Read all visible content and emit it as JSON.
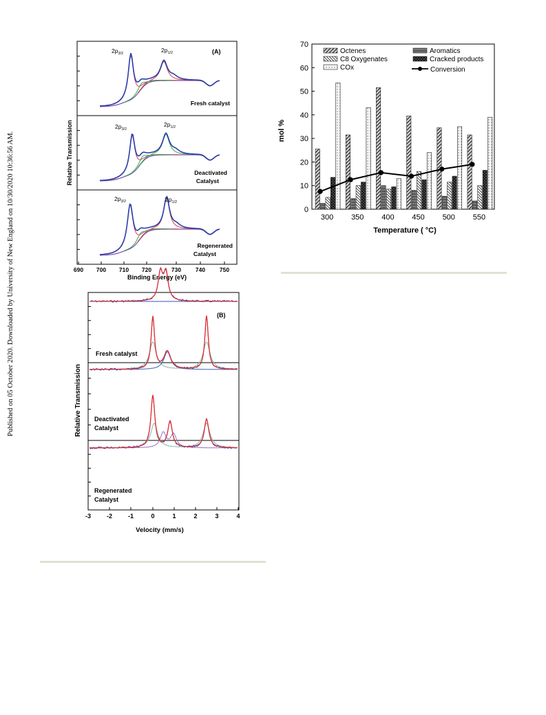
{
  "side_note": "Published on 05 October 2020. Downloaded by University of New England on 10/30/2020 10:36:56 AM.",
  "panel_a": {
    "label": "(A)",
    "ylabel": "Relative Transmission",
    "xlabel": "Binding Energy (eV)",
    "xticks": [
      "690",
      "700",
      "710",
      "720",
      "730",
      "740",
      "750"
    ],
    "subpanels": [
      {
        "text1": "Fresh catalyst",
        "text2": ""
      },
      {
        "text1": "Deactivated",
        "text2": "Catalyst"
      },
      {
        "text1": "Regenerated",
        "text2": "Catalyst"
      }
    ],
    "peak_main": "2p",
    "peak_sub1": "3/2",
    "peak_sub2": "1/2"
  },
  "panel_b": {
    "label": "(B)",
    "ylabel": "Relative Transmission",
    "xlabel": "Velocity (mm/s)",
    "xticks": [
      "-3",
      "-2",
      "-1",
      "0",
      "1",
      "2",
      "3",
      "4"
    ],
    "subpanels": [
      {
        "text1": "Fresh catalyst",
        "text2": ""
      },
      {
        "text1": "Deactivated",
        "text2": "Catalyst"
      },
      {
        "text1": "Regenerated",
        "text2": "Catalyst"
      }
    ]
  },
  "colors": {
    "octenes": "#bdbdbd",
    "aromatics": "#7a7a7a",
    "c8": "#e6e6e6",
    "cracked": "#3d3d3d",
    "cox": "#f2f2f2",
    "conversion": "#000000",
    "separator": "#e2e0d2"
  },
  "chart_data": {
    "type": "bar",
    "title": "",
    "xlabel": "Temperature ( °C)",
    "ylabel": "mol %",
    "ylim": [
      0,
      70
    ],
    "yticks": [
      "0",
      "10",
      "20",
      "30",
      "40",
      "50",
      "60",
      "70"
    ],
    "categories": [
      "300",
      "350",
      "400",
      "450",
      "500",
      "550"
    ],
    "legend_position": "top",
    "series": [
      {
        "name": "Octenes",
        "values": [
          25.5,
          31.5,
          51.5,
          39.5,
          34.5,
          31.5
        ]
      },
      {
        "name": "Aromatics",
        "values": [
          2.5,
          4.5,
          10,
          8,
          5.5,
          3.5
        ]
      },
      {
        "name": "C8 Oxygenates",
        "values": [
          5,
          10,
          8.5,
          16,
          11.5,
          10
        ]
      },
      {
        "name": "Cracked products",
        "values": [
          13.5,
          11.5,
          9.5,
          12.5,
          14,
          16.5
        ]
      },
      {
        "name": "COx",
        "values": [
          53.5,
          43,
          13,
          24,
          35,
          39
        ]
      }
    ],
    "line_series": {
      "name": "Conversion",
      "values": [
        7.5,
        12.5,
        15.5,
        14,
        17,
        19
      ]
    }
  }
}
